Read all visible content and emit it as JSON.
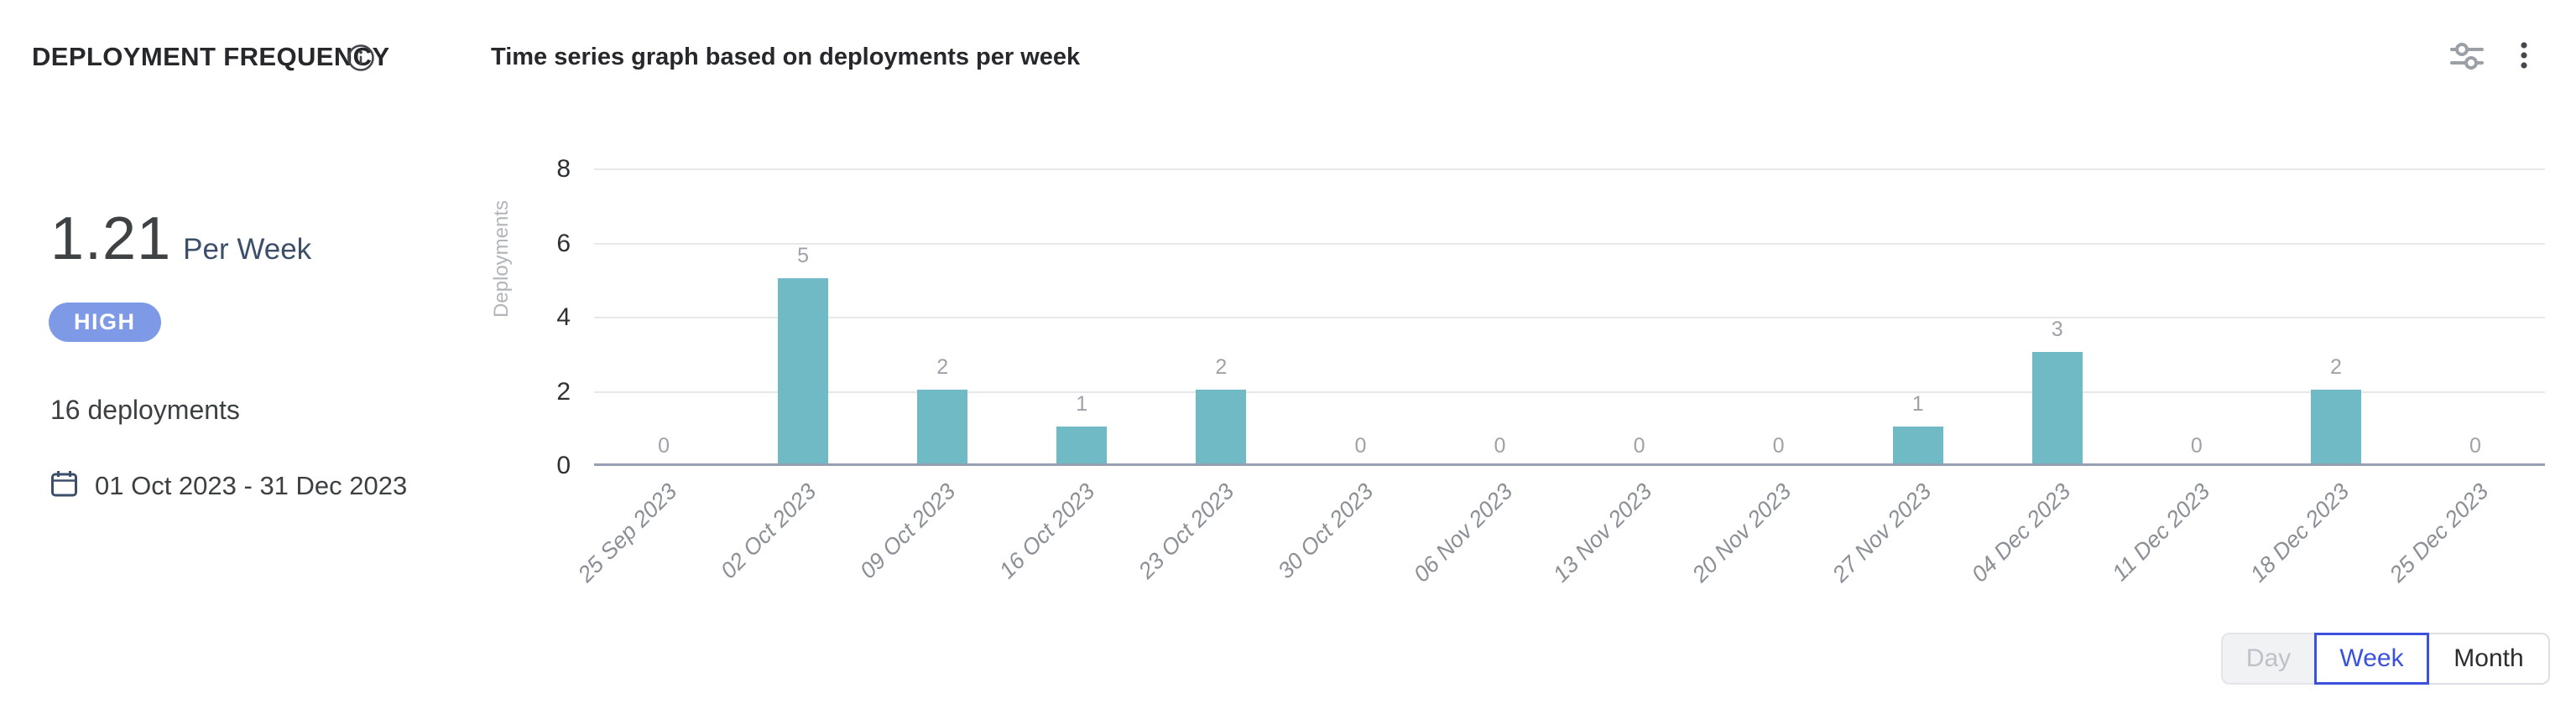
{
  "header": {
    "title": "DEPLOYMENT FREQUENCY",
    "subtitle": "Time series graph based on deployments per week",
    "icons": {
      "info": "info-circle-outline",
      "settings": "tune-sliders",
      "menu": "kebab-vertical-dots",
      "calendar": "calendar-outline"
    }
  },
  "stats": {
    "value": "1.21",
    "unit": "Per Week",
    "badge": {
      "label": "HIGH",
      "color": "#7e99e6"
    },
    "deployments_total": "16 deployments",
    "date_range": "01 Oct 2023 - 31 Dec 2023"
  },
  "chart_data": {
    "type": "bar",
    "title": "Time series graph based on deployments per week",
    "xlabel": "",
    "ylabel": "Deployments",
    "ylim": [
      0,
      8
    ],
    "yticks": [
      0,
      2,
      4,
      6,
      8
    ],
    "grid": true,
    "legend": false,
    "value_labels": true,
    "bar_color": "#6fbac4",
    "categories": [
      "25 Sep 2023",
      "02 Oct 2023",
      "09 Oct 2023",
      "16 Oct 2023",
      "23 Oct 2023",
      "30 Oct 2023",
      "06 Nov 2023",
      "13 Nov 2023",
      "20 Nov 2023",
      "27 Nov 2023",
      "04 Dec 2023",
      "11 Dec 2023",
      "18 Dec 2023",
      "25 Dec 2023"
    ],
    "values": [
      0,
      5,
      2,
      1,
      2,
      0,
      0,
      0,
      0,
      1,
      3,
      0,
      2,
      0
    ]
  },
  "granularity_toggle": {
    "options": [
      {
        "label": "Day",
        "state": "disabled"
      },
      {
        "label": "Week",
        "state": "selected"
      },
      {
        "label": "Month",
        "state": "default"
      }
    ]
  },
  "colors": {
    "bar_teal": "#6fbac4",
    "badge_bg": "#7e99e6",
    "accent_blue": "#3b51dd",
    "navy_text": "#3d4e6b",
    "axis_baseline": "#97a0b3",
    "gridline": "#e7e8e9"
  }
}
